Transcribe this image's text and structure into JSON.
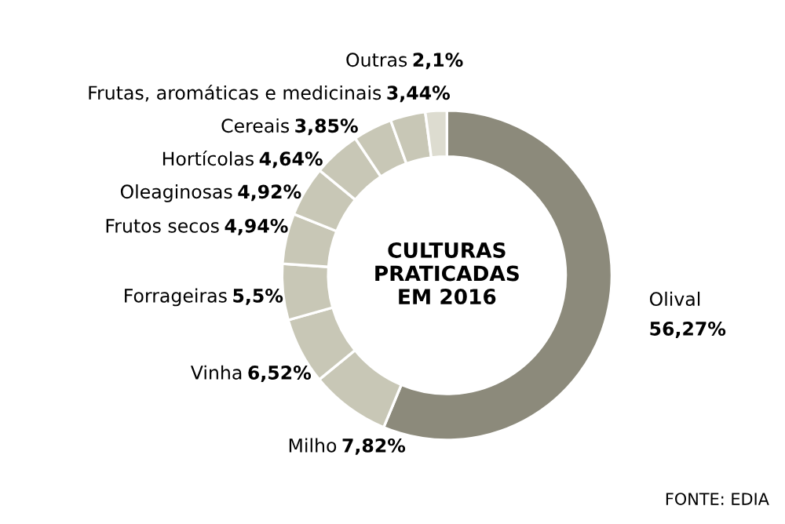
{
  "chart_data": {
    "type": "donut",
    "title": "CULTURAS\nPRATICADAS\nEM 2016",
    "categories": [
      "Olival",
      "Milho",
      "Vinha",
      "Forrageiras",
      "Frutos secos",
      "Oleaginosas",
      "Hortícolas",
      "Cereais",
      "Frutas, aromáticas e medicinais",
      "Outras"
    ],
    "values": [
      56.27,
      7.82,
      6.52,
      5.5,
      4.94,
      4.92,
      4.64,
      3.85,
      3.44,
      2.1
    ],
    "value_labels": [
      "56,27%",
      "7,82%",
      "6,52%",
      "5,5%",
      "4,94%",
      "4,92%",
      "4,64%",
      "3,85%",
      "3,44%",
      "2,1%"
    ],
    "colors": [
      "#8c8a7b",
      "#c8c7b6",
      "#c8c7b6",
      "#c8c7b6",
      "#c8c7b6",
      "#c8c7b6",
      "#c8c7b6",
      "#c8c7b6",
      "#c8c7b6",
      "#dddcd0"
    ],
    "annotations": [
      "FONTE: EDIA"
    ],
    "legend": false
  }
}
